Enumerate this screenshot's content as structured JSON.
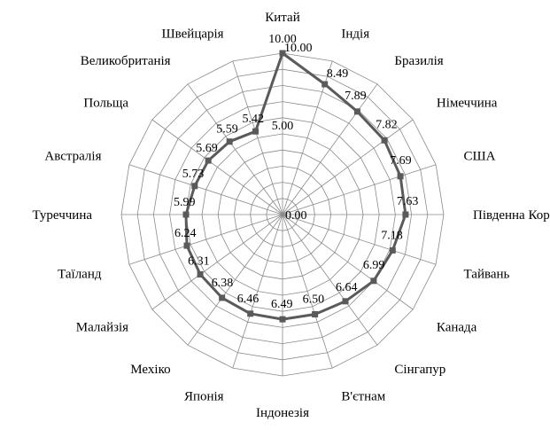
{
  "chart_data": {
    "type": "radar",
    "categories": [
      "Китай",
      "Індія",
      "Бразилія",
      "Німеччина",
      "США",
      "Південна Корея",
      "Тайвань",
      "Канада",
      "Сінгапур",
      "В'єтнам",
      "Індонезія",
      "Японія",
      "Мехіко",
      "Малайзія",
      "Таїланд",
      "Туреччина",
      "Австралія",
      "Польща",
      "Великобританія",
      "Швейцарія"
    ],
    "values": [
      10.0,
      8.49,
      7.89,
      7.82,
      7.69,
      7.63,
      7.18,
      6.99,
      6.64,
      6.5,
      6.49,
      6.46,
      6.38,
      6.31,
      6.24,
      5.99,
      5.73,
      5.69,
      5.59,
      5.42
    ],
    "value_labels": [
      "10.00",
      "8.49",
      "7.89",
      "7.82",
      "7.69",
      "7.63",
      "7.18",
      "6.99",
      "6.64",
      "6.50",
      "6.49",
      "6.46",
      "6.38",
      "6.31",
      "6.24",
      "5.99",
      "5.73",
      "5.69",
      "5.59",
      "5.42"
    ],
    "rlim": [
      0,
      10
    ],
    "ticks": [
      0,
      5,
      10
    ],
    "tick_labels": [
      "0.00",
      "5.00",
      "10.00"
    ],
    "grid": true,
    "legend": "none",
    "series_color": "#5a5a5a",
    "grid_color": "#8a8a8a"
  }
}
